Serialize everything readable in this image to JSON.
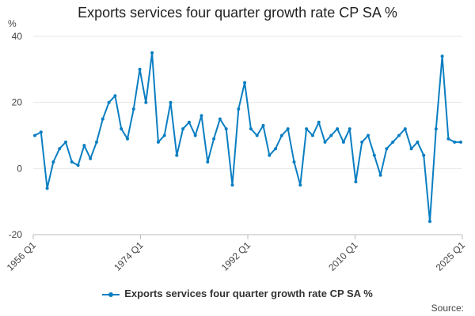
{
  "chart_data": {
    "type": "line",
    "title": "Exports services four quarter growth rate CP SA %",
    "ylabel": "%",
    "xlabel": "",
    "ylim": [
      -20,
      40
    ],
    "yticks": [
      "40",
      "20",
      "0",
      "-20"
    ],
    "xticks": [
      "1956 Q1",
      "1974 Q1",
      "1992 Q1",
      "2010 Q1",
      "2025 Q1"
    ],
    "grid": true,
    "legend_position": "bottom",
    "color": "#0a7ec2",
    "series": [
      {
        "name": "Exports services four quarter growth rate CP SA %",
        "x": [
          "1956 Q1",
          "1957 Q1",
          "1958 Q1",
          "1959 Q1",
          "1960 Q1",
          "1961 Q1",
          "1962 Q1",
          "1963 Q1",
          "1964 Q1",
          "1965 Q1",
          "1966 Q1",
          "1967 Q1",
          "1968 Q1",
          "1969 Q1",
          "1970 Q1",
          "1971 Q1",
          "1972 Q1",
          "1973 Q1",
          "1974 Q1",
          "1975 Q1",
          "1976 Q1",
          "1977 Q1",
          "1978 Q1",
          "1979 Q1",
          "1980 Q1",
          "1981 Q1",
          "1982 Q1",
          "1983 Q1",
          "1984 Q1",
          "1985 Q1",
          "1986 Q1",
          "1987 Q1",
          "1988 Q1",
          "1989 Q1",
          "1990 Q1",
          "1991 Q1",
          "1992 Q1",
          "1993 Q1",
          "1994 Q1",
          "1995 Q1",
          "1996 Q1",
          "1997 Q1",
          "1998 Q1",
          "1999 Q1",
          "2000 Q1",
          "2001 Q1",
          "2002 Q1",
          "2003 Q1",
          "2004 Q1",
          "2005 Q1",
          "2006 Q1",
          "2007 Q1",
          "2008 Q1",
          "2009 Q1",
          "2010 Q1",
          "2011 Q1",
          "2012 Q1",
          "2013 Q1",
          "2014 Q1",
          "2015 Q1",
          "2016 Q1",
          "2017 Q1",
          "2018 Q1",
          "2019 Q1",
          "2020 Q1",
          "2021 Q1",
          "2022 Q1",
          "2023 Q1",
          "2024 Q1",
          "2025 Q1"
        ],
        "values": [
          10,
          11,
          -6,
          2,
          6,
          8,
          2,
          1,
          7,
          3,
          8,
          15,
          20,
          22,
          12,
          9,
          18,
          30,
          20,
          35,
          8,
          10,
          20,
          4,
          12,
          14,
          10,
          16,
          2,
          9,
          15,
          12,
          -5,
          18,
          26,
          12,
          10,
          13,
          4,
          6,
          10,
          12,
          2,
          -5,
          12,
          10,
          14,
          8,
          10,
          12,
          8,
          12,
          -4,
          8,
          10,
          4,
          -2,
          6,
          8,
          10,
          12,
          6,
          8,
          4,
          -16,
          12,
          34,
          9,
          8,
          8
        ]
      }
    ]
  },
  "legend": {
    "label": "Exports services four quarter growth rate CP SA %"
  },
  "source": {
    "label": "Source:"
  }
}
